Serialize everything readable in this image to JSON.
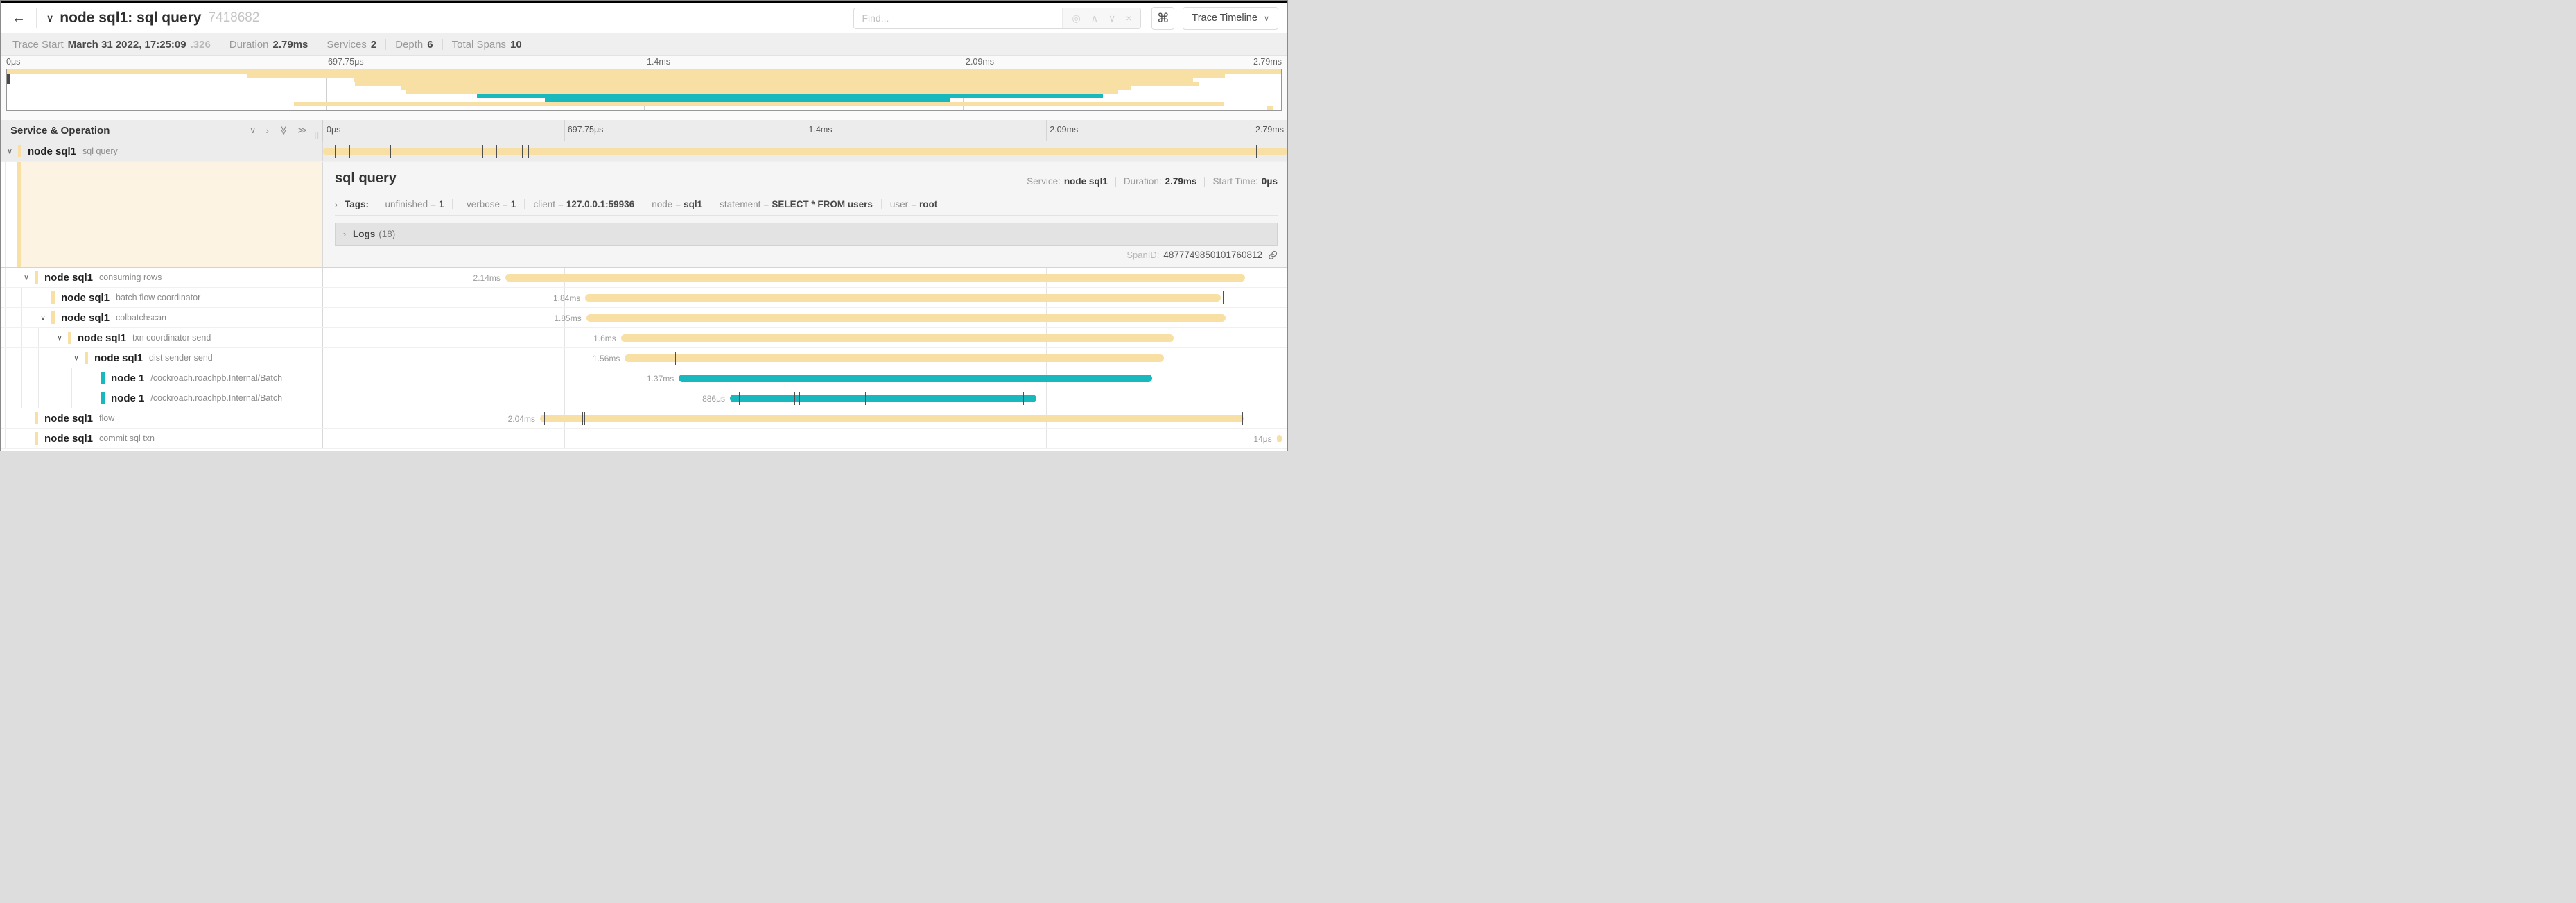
{
  "colors": {
    "tan": "#F8DFA4",
    "teal": "#17B8BE",
    "selected_row": "#ececec",
    "detail_cream": "#fcf3e2"
  },
  "topbar": {
    "back": "←",
    "collapse_chevron": "∨",
    "title": "node sql1: sql query",
    "trace_id": "7418682",
    "find_placeholder": "Find...",
    "find_icons": [
      "◎",
      "∧",
      "∨",
      "×"
    ],
    "shortcut_icon": "⌘",
    "view_selector": "Trace Timeline",
    "view_selector_chevron": "∨"
  },
  "summary": {
    "trace_start_label": "Trace Start",
    "trace_start_value": "March 31 2022, 17:25:09",
    "trace_start_fraction": ".326",
    "items": [
      {
        "label": "Duration",
        "value": "2.79ms"
      },
      {
        "label": "Services",
        "value": "2"
      },
      {
        "label": "Depth",
        "value": "6"
      },
      {
        "label": "Total Spans",
        "value": "10"
      }
    ]
  },
  "axis_ticks": [
    {
      "label": "0μs",
      "pct": 0
    },
    {
      "label": "697.75μs",
      "pct": 25
    },
    {
      "label": "1.4ms",
      "pct": 50
    },
    {
      "label": "2.09ms",
      "pct": 75
    },
    {
      "label": "2.79ms",
      "pct": 100
    }
  ],
  "grid_header": {
    "left_title": "Service & Operation",
    "icons": {
      "collapse_one": "∨",
      "expand_one": "›",
      "collapse_all": "≫",
      "expand_all": "≫"
    },
    "handle": "||"
  },
  "spans": [
    {
      "service": "node sql1",
      "operation": "sql query",
      "depth": 0,
      "expandable": true,
      "color": "tan",
      "start": 0,
      "width": 100,
      "duration_label": "",
      "selected": true,
      "ticks": [
        1.2,
        2.7,
        5.0,
        6.4,
        6.7,
        7.0,
        13.2,
        16.5,
        17.0,
        17.4,
        17.7,
        18.0,
        20.6,
        21.3,
        24.2,
        96.4,
        96.8
      ]
    },
    {
      "service": "node sql1",
      "operation": "consuming rows",
      "depth": 1,
      "expandable": true,
      "color": "tan",
      "start": 18.9,
      "width": 76.7,
      "duration_label": "2.14ms",
      "selected": false,
      "ticks": []
    },
    {
      "service": "node sql1",
      "operation": "batch flow coordinator",
      "depth": 2,
      "expandable": false,
      "color": "tan",
      "start": 27.2,
      "width": 65.9,
      "duration_label": "1.84ms",
      "selected": false,
      "ticks": [
        93.3
      ]
    },
    {
      "service": "node sql1",
      "operation": "colbatchscan",
      "depth": 2,
      "expandable": true,
      "color": "tan",
      "start": 27.3,
      "width": 66.3,
      "duration_label": "1.85ms",
      "selected": false,
      "ticks": [
        30.8
      ]
    },
    {
      "service": "node sql1",
      "operation": "txn coordinator send",
      "depth": 3,
      "expandable": true,
      "color": "tan",
      "start": 30.9,
      "width": 57.3,
      "duration_label": "1.6ms",
      "selected": false,
      "ticks": [
        88.4
      ]
    },
    {
      "service": "node sql1",
      "operation": "dist sender send",
      "depth": 4,
      "expandable": true,
      "color": "tan",
      "start": 31.3,
      "width": 55.9,
      "duration_label": "1.56ms",
      "selected": false,
      "ticks": [
        32.0,
        34.8,
        36.5
      ]
    },
    {
      "service": "node 1",
      "operation": "/cockroach.roachpb.Internal/Batch",
      "depth": 5,
      "expandable": false,
      "color": "teal",
      "start": 36.9,
      "width": 49.1,
      "duration_label": "1.37ms",
      "selected": false,
      "ticks": []
    },
    {
      "service": "node 1",
      "operation": "/cockroach.roachpb.Internal/Batch",
      "depth": 5,
      "expandable": false,
      "color": "teal",
      "start": 42.2,
      "width": 31.8,
      "duration_label": "886μs",
      "selected": false,
      "ticks": [
        43.1,
        45.8,
        46.7,
        47.9,
        48.4,
        48.9,
        49.4,
        56.2,
        72.6,
        73.5
      ]
    },
    {
      "service": "node sql1",
      "operation": "flow",
      "depth": 1,
      "expandable": false,
      "color": "tan",
      "start": 22.5,
      "width": 73.0,
      "duration_label": "2.04ms",
      "selected": false,
      "ticks": [
        22.9,
        23.7,
        26.9,
        27.1,
        95.3
      ]
    },
    {
      "service": "node sql1",
      "operation": "commit sql txn",
      "depth": 1,
      "expandable": false,
      "color": "tan",
      "start": 98.9,
      "width": 0.5,
      "duration_label": "14μs",
      "selected": false,
      "ticks": []
    }
  ],
  "detail": {
    "title": "sql query",
    "service_label": "Service:",
    "service": "node sql1",
    "duration_label": "Duration:",
    "duration": "2.79ms",
    "start_label": "Start Time:",
    "start": "0μs",
    "tags_chevron": "›",
    "tags_label": "Tags:",
    "tags": [
      {
        "key": "_unfinished",
        "value": "1"
      },
      {
        "key": "_verbose",
        "value": "1"
      },
      {
        "key": "client",
        "value": "127.0.0.1:59936"
      },
      {
        "key": "node",
        "value": "sql1"
      },
      {
        "key": "statement",
        "value": "SELECT * FROM users"
      },
      {
        "key": "user",
        "value": "root"
      }
    ],
    "logs_chevron": "›",
    "logs_label": "Logs",
    "logs_count": "(18)",
    "span_id_label": "SpanID:",
    "span_id": "4877749850101760812"
  }
}
